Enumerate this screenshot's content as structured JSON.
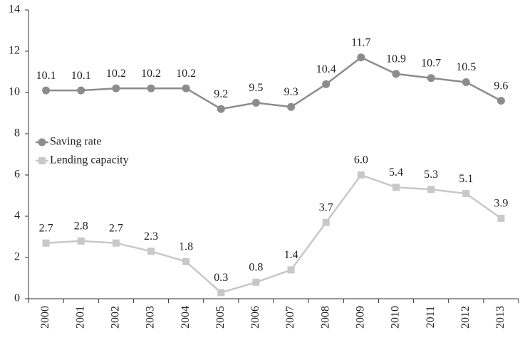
{
  "chart_data": {
    "type": "line",
    "categories": [
      "2000",
      "2001",
      "2002",
      "2003",
      "2004",
      "2005",
      "2006",
      "2007",
      "2008",
      "2009",
      "2010",
      "2011",
      "2012",
      "2013"
    ],
    "series": [
      {
        "name": "Saving rate",
        "color": "#8c8c8c",
        "marker": "circle",
        "values": [
          10.1,
          10.1,
          10.2,
          10.2,
          10.2,
          9.2,
          9.5,
          9.3,
          10.4,
          11.7,
          10.9,
          10.7,
          10.5,
          9.6
        ]
      },
      {
        "name": "Lending capacity",
        "color": "#c8c8c8",
        "marker": "square",
        "values": [
          2.7,
          2.8,
          2.7,
          2.3,
          1.8,
          0.3,
          0.8,
          1.4,
          3.7,
          6.0,
          5.4,
          5.3,
          5.1,
          3.9
        ],
        "value_labels": [
          "2.7",
          "2.8",
          "2.7",
          "2.3",
          "1.8",
          "0.3",
          "0.8",
          "1.4",
          "3.7",
          "6.0",
          "5.4",
          "5.3",
          "5.1",
          "3.9"
        ]
      }
    ],
    "ylim": [
      0,
      14
    ],
    "yticks": [
      0,
      2,
      4,
      6,
      8,
      10,
      12,
      14
    ],
    "grid": false,
    "legend": "left"
  }
}
